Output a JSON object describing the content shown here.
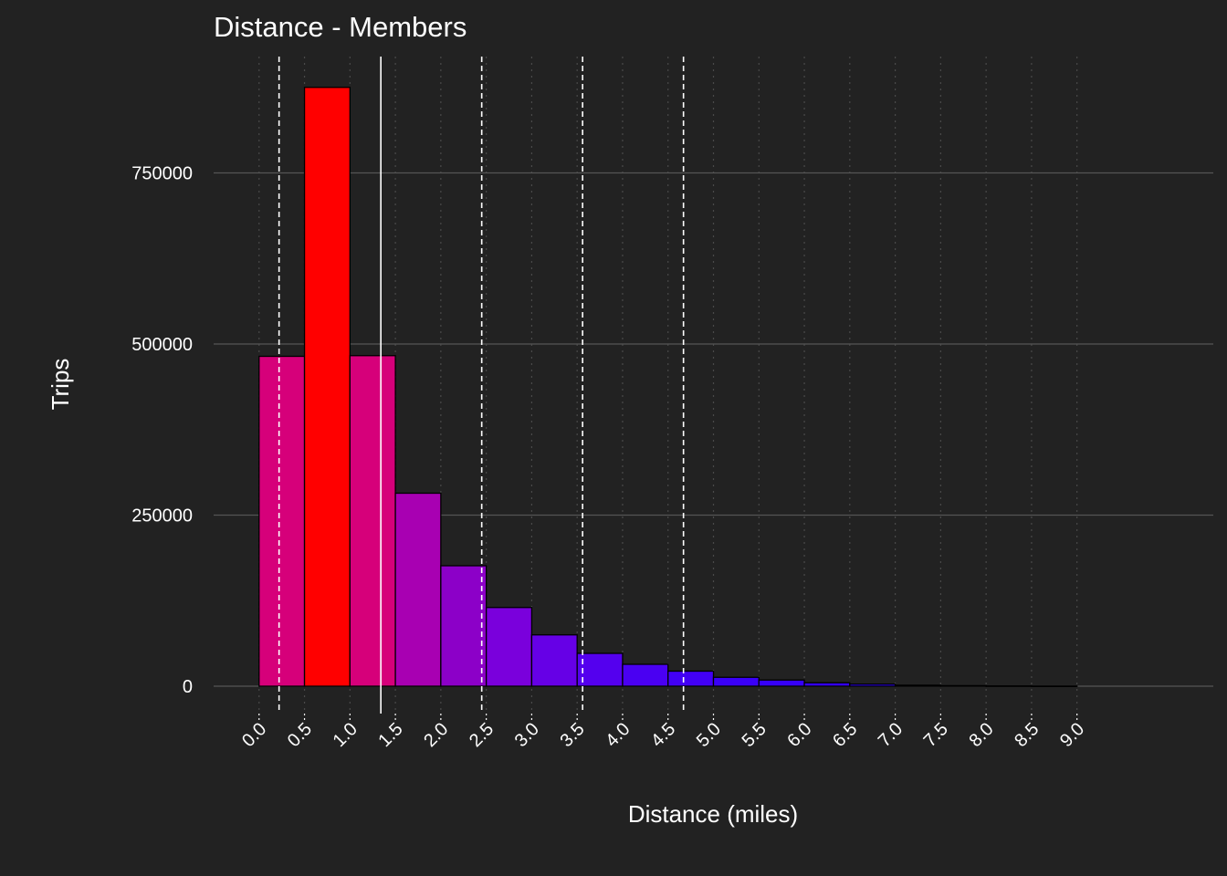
{
  "chart_data": {
    "type": "bar",
    "title": "Distance - Members",
    "xlabel": "Distance (miles)",
    "ylabel": "Trips",
    "ylim": [
      -40000,
      920000
    ],
    "xlim": [
      -0.5,
      10.5
    ],
    "x_ticks": [
      "0.0",
      "0.5",
      "1.0",
      "1.5",
      "2.0",
      "2.5",
      "3.0",
      "3.5",
      "4.0",
      "4.5",
      "5.0",
      "5.5",
      "6.0",
      "6.5",
      "7.0",
      "7.5",
      "8.0",
      "8.5",
      "9.0"
    ],
    "y_ticks": [
      "0",
      "250000",
      "500000",
      "750000"
    ],
    "bin_width": 0.5,
    "bins": [
      {
        "x0": 0.0,
        "x1": 0.5,
        "value": 482000,
        "color": "#d6007a"
      },
      {
        "x0": 0.5,
        "x1": 1.0,
        "value": 875000,
        "color": "#ff0000"
      },
      {
        "x0": 1.0,
        "x1": 1.5,
        "value": 483000,
        "color": "#d6007a"
      },
      {
        "x0": 1.5,
        "x1": 2.0,
        "value": 282000,
        "color": "#a800b2"
      },
      {
        "x0": 2.0,
        "x1": 2.5,
        "value": 176000,
        "color": "#8c00c8"
      },
      {
        "x0": 2.5,
        "x1": 3.0,
        "value": 115000,
        "color": "#7a00dc"
      },
      {
        "x0": 3.0,
        "x1": 3.5,
        "value": 75000,
        "color": "#6600e6"
      },
      {
        "x0": 3.5,
        "x1": 4.0,
        "value": 48000,
        "color": "#5400ee"
      },
      {
        "x0": 4.0,
        "x1": 4.5,
        "value": 32000,
        "color": "#4a00f2"
      },
      {
        "x0": 4.5,
        "x1": 5.0,
        "value": 22000,
        "color": "#4200f5"
      },
      {
        "x0": 5.0,
        "x1": 5.5,
        "value": 13000,
        "color": "#3a00f8"
      },
      {
        "x0": 5.5,
        "x1": 6.0,
        "value": 9000,
        "color": "#3600fa"
      },
      {
        "x0": 6.0,
        "x1": 6.5,
        "value": 5000,
        "color": "#3300fb"
      },
      {
        "x0": 6.5,
        "x1": 7.0,
        "value": 3000,
        "color": "#3000fc"
      },
      {
        "x0": 7.0,
        "x1": 7.5,
        "value": 1500,
        "color": "#2e00fd"
      },
      {
        "x0": 7.5,
        "x1": 8.0,
        "value": 800,
        "color": "#2c00fe"
      },
      {
        "x0": 8.0,
        "x1": 8.5,
        "value": 400,
        "color": "#2a00fe"
      },
      {
        "x0": 8.5,
        "x1": 9.0,
        "value": 200,
        "color": "#2800ff"
      }
    ],
    "reference_lines": [
      {
        "x": 0.22,
        "style": "dashed"
      },
      {
        "x": 1.34,
        "style": "solid"
      },
      {
        "x": 2.45,
        "style": "dashed"
      },
      {
        "x": 3.56,
        "style": "dashed"
      },
      {
        "x": 4.67,
        "style": "dashed"
      }
    ],
    "grid": true,
    "legend": "none",
    "colors": {
      "background": "#222222",
      "grid_major": "#555555",
      "grid_minor": "#4a4a4a",
      "bar_outline": "#000000",
      "reference_line": "#ffffff",
      "text": "#ffffff"
    }
  }
}
